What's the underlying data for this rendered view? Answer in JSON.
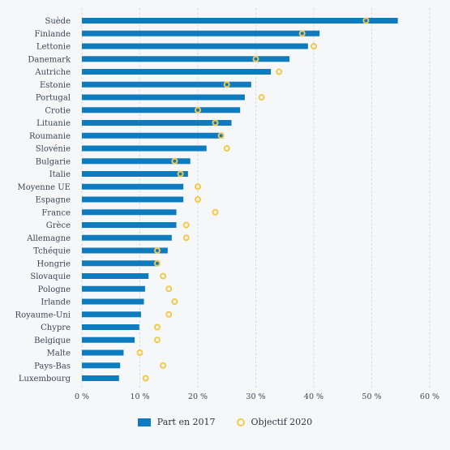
{
  "chart_data": {
    "type": "bar",
    "title": "",
    "xlabel": "",
    "ylabel": "",
    "xlim": [
      0,
      60
    ],
    "x_ticks": [
      "0 %",
      "10 %",
      "20 %",
      "30 %",
      "40 %",
      "50 %",
      "60 %"
    ],
    "x_tick_values": [
      0,
      10,
      20,
      30,
      40,
      50,
      60
    ],
    "orientation": "horizontal",
    "grid": true,
    "legend_position": "bottom",
    "categories": [
      "Suède",
      "Finlande",
      "Lettonie",
      "Danemark",
      "Autriche",
      "Estonie",
      "Portugal",
      "Crotie",
      "Lituanie",
      "Roumanie",
      "Slovénie",
      "Bulgarie",
      "Italie",
      "Moyenne UE",
      "Espagne",
      "France",
      "Grèce",
      "Allemagne",
      "Tchéquie",
      "Hongrie",
      "Slovaquie",
      "Pologne",
      "Irlande",
      "Royaume-Uni",
      "Chypre",
      "Belgique",
      "Malte",
      "Pays-Bas",
      "Luxembourg"
    ],
    "series": [
      {
        "name": "Part en 2017",
        "kind": "bar",
        "color": "#0e7bbf",
        "values": [
          54.5,
          41.0,
          39.0,
          35.8,
          32.6,
          29.2,
          28.1,
          27.3,
          25.8,
          24.4,
          21.5,
          18.7,
          18.3,
          17.5,
          17.5,
          16.3,
          16.3,
          15.5,
          14.8,
          13.3,
          11.5,
          10.9,
          10.7,
          10.2,
          9.9,
          9.1,
          7.2,
          6.6,
          6.4
        ]
      },
      {
        "name": "Objectif 2020",
        "kind": "marker",
        "color": "#f2c94c",
        "values": [
          49,
          38,
          40,
          30,
          34,
          25,
          31,
          20,
          23,
          24,
          25,
          16,
          17,
          20,
          20,
          23,
          18,
          18,
          13,
          13,
          14,
          15,
          16,
          15,
          13,
          13,
          10,
          14,
          11
        ]
      }
    ]
  }
}
